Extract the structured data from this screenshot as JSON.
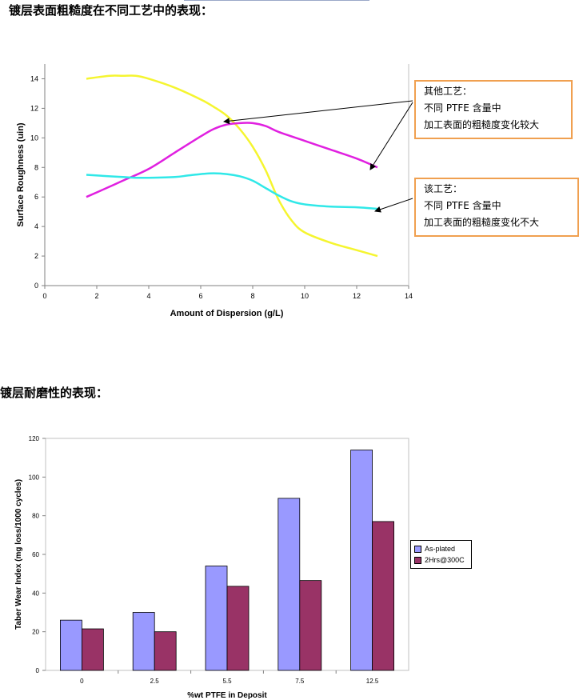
{
  "headings": {
    "roughness": "镀层表面粗糙度在不同工艺中的表现：",
    "wear": "镀层耐磨性的表现："
  },
  "callouts": {
    "other_process": [
      "其他工艺：",
      "不同 PTFE 含量中",
      "加工表面的粗糙度变化较大"
    ],
    "this_process": [
      "该工艺：",
      "不同 PTFE 含量中",
      "加工表面的粗糙度变化不大"
    ]
  },
  "colors": {
    "yellow": "#f5f530",
    "magenta": "#e020e0",
    "cyan": "#30e8e8",
    "as_plated": "#9999ff",
    "heated": "#993366",
    "callout_border": "#f0a050"
  },
  "chart_data": [
    {
      "type": "line",
      "title": "",
      "xlabel": "Amount of Dispersion (g/L)",
      "ylabel": "Surface Roughness (uin)",
      "xlim": [
        0,
        14
      ],
      "ylim": [
        0,
        15
      ],
      "xticks": [
        0,
        2,
        4,
        6,
        8,
        10,
        12,
        14
      ],
      "yticks": [
        0,
        2,
        4,
        6,
        8,
        10,
        12,
        14
      ],
      "grid": false,
      "series": [
        {
          "color": "yellow",
          "x": [
            1.6,
            2.5,
            3.0,
            3.5,
            4.0,
            5.0,
            6.0,
            6.5,
            7.0,
            7.5,
            8.0,
            8.5,
            9.0,
            9.5,
            10.0,
            11.0,
            12.0,
            12.8
          ],
          "y": [
            14.0,
            14.2,
            14.2,
            14.2,
            14.0,
            13.4,
            12.6,
            12.1,
            11.5,
            10.6,
            9.4,
            7.8,
            5.8,
            4.4,
            3.6,
            2.9,
            2.4,
            2.0
          ]
        },
        {
          "color": "magenta",
          "x": [
            1.6,
            2.5,
            3.0,
            4.0,
            5.0,
            6.0,
            6.5,
            7.0,
            7.5,
            8.0,
            8.5,
            9.0,
            10.0,
            11.0,
            12.0,
            12.8
          ],
          "y": [
            6.0,
            6.7,
            7.1,
            7.9,
            9.0,
            10.1,
            10.6,
            10.9,
            11.0,
            11.0,
            10.8,
            10.4,
            9.8,
            9.2,
            8.6,
            8.0
          ]
        },
        {
          "color": "cyan",
          "x": [
            1.6,
            2.5,
            3.0,
            3.5,
            4.0,
            5.0,
            5.5,
            6.0,
            6.5,
            7.0,
            7.5,
            8.0,
            8.5,
            9.0,
            9.5,
            10.0,
            11.0,
            12.0,
            12.8
          ],
          "y": [
            7.5,
            7.4,
            7.35,
            7.3,
            7.3,
            7.35,
            7.45,
            7.55,
            7.6,
            7.55,
            7.4,
            7.1,
            6.6,
            6.1,
            5.7,
            5.5,
            5.35,
            5.3,
            5.2
          ]
        }
      ]
    },
    {
      "type": "bar",
      "title": "",
      "xlabel": "%wt PTFE in Deposit",
      "ylabel": "Taber Wear Index (mg loss/1000 cycles)",
      "ylim": [
        0,
        120
      ],
      "yticks": [
        0,
        20,
        40,
        60,
        80,
        100,
        120
      ],
      "grid": false,
      "legend": "right",
      "categories": [
        "0",
        "2.5",
        "5.5",
        "7.5",
        "12.5"
      ],
      "series": [
        {
          "name": "As-plated",
          "color": "as_plated",
          "values": [
            26,
            30,
            54,
            89,
            114
          ]
        },
        {
          "name": "2Hrs@300C",
          "color": "heated",
          "values": [
            21.5,
            20,
            43.5,
            46.5,
            77
          ]
        }
      ]
    }
  ]
}
